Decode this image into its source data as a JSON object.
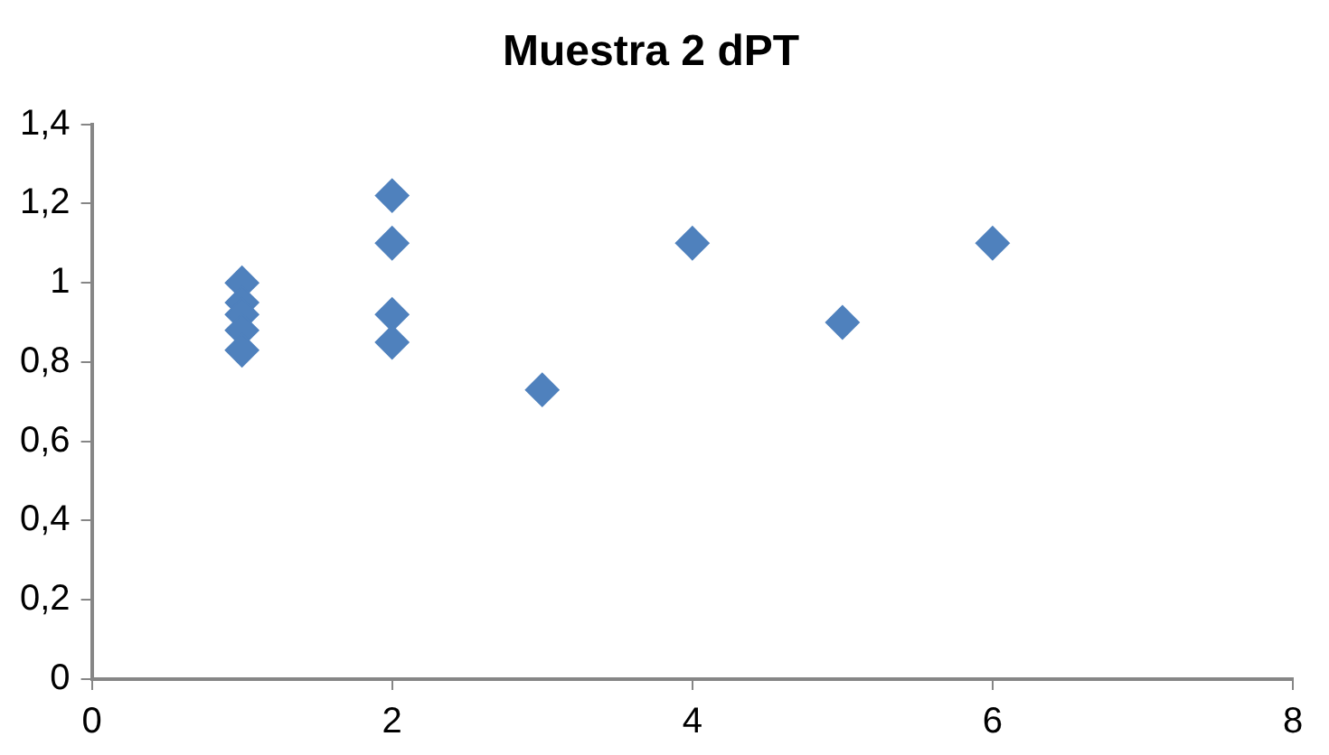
{
  "chart_data": {
    "type": "scatter",
    "title": "Muestra 2 dPT",
    "x": [
      1,
      1,
      1,
      1,
      1,
      2,
      2,
      2,
      2,
      3,
      4,
      5,
      6
    ],
    "values": [
      1.0,
      0.95,
      0.92,
      0.88,
      0.83,
      1.22,
      1.1,
      0.92,
      0.85,
      0.73,
      1.1,
      0.9,
      1.1
    ],
    "color": "#4f81bd",
    "marker": "diamond",
    "xlim": [
      0,
      8
    ],
    "xticks": [
      0,
      2,
      4,
      6,
      8
    ],
    "ylim": [
      0,
      1.4
    ],
    "yticks": [
      0,
      {
        "value": 0.2,
        "label": "0,2"
      },
      {
        "value": 0.4,
        "label": "0,4"
      },
      {
        "value": 0.6,
        "label": "0,6"
      },
      {
        "value": 0.8,
        "label": "0,8"
      },
      1,
      {
        "value": 1.2,
        "label": "1,2"
      },
      {
        "value": 1.4,
        "label": "1,4"
      }
    ],
    "grid": false,
    "legend": false
  }
}
